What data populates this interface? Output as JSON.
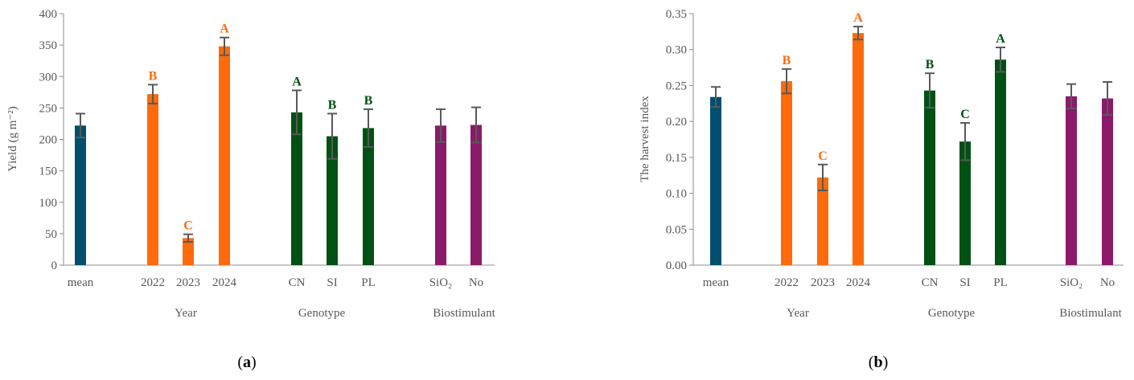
{
  "colors": {
    "mean": "#004f6e",
    "year": "#ff6a0a",
    "genotype": "#005113",
    "biostimulant": "#8b1a6b",
    "axis": "#8c8c8c",
    "text": "#595959"
  },
  "chart_data": [
    {
      "panel": "(a)",
      "type": "bar",
      "ylabel": "Yield (g m⁻²)",
      "ylim": [
        0,
        400
      ],
      "yticks": [
        "0",
        "50",
        "100",
        "150",
        "200",
        "250",
        "300",
        "350",
        "400"
      ],
      "categories": [
        "mean",
        "2022",
        "2023",
        "2024",
        "CN",
        "SI",
        "PL",
        "SiO₂",
        "No"
      ],
      "groups": [
        "",
        "Year",
        "Year",
        "Year",
        "Genotype",
        "Genotype",
        "Genotype",
        "Biostimulant",
        "Biostimulant"
      ],
      "group_labels": [
        "Year",
        "Genotype",
        "Biostimulant"
      ],
      "values": [
        222,
        272,
        43,
        348,
        243,
        205,
        218,
        222,
        223
      ],
      "errors": [
        19,
        15,
        6,
        14,
        35,
        36,
        30,
        26,
        28
      ],
      "letters": [
        "",
        "B",
        "C",
        "A",
        "A",
        "B",
        "B",
        "",
        ""
      ]
    },
    {
      "panel": "(b)",
      "type": "bar",
      "ylabel": "The harvest index",
      "ylim": [
        0,
        0.35
      ],
      "yticks": [
        "0.00",
        "0.05",
        "0.10",
        "0.15",
        "0.20",
        "0.25",
        "0.30",
        "0.35"
      ],
      "categories": [
        "mean",
        "2022",
        "2023",
        "2024",
        "CN",
        "SI",
        "PL",
        "SiO₂",
        "No"
      ],
      "groups": [
        "",
        "Year",
        "Year",
        "Year",
        "Genotype",
        "Genotype",
        "Genotype",
        "Biostimulant",
        "Biostimulant"
      ],
      "group_labels": [
        "Year",
        "Genotype",
        "Biostimulant"
      ],
      "values": [
        0.234,
        0.256,
        0.122,
        0.323,
        0.243,
        0.172,
        0.286,
        0.235,
        0.232
      ],
      "errors": [
        0.014,
        0.017,
        0.018,
        0.009,
        0.024,
        0.026,
        0.017,
        0.017,
        0.023
      ],
      "letters": [
        "",
        "B",
        "C",
        "A",
        "B",
        "C",
        "A",
        "",
        ""
      ]
    }
  ]
}
